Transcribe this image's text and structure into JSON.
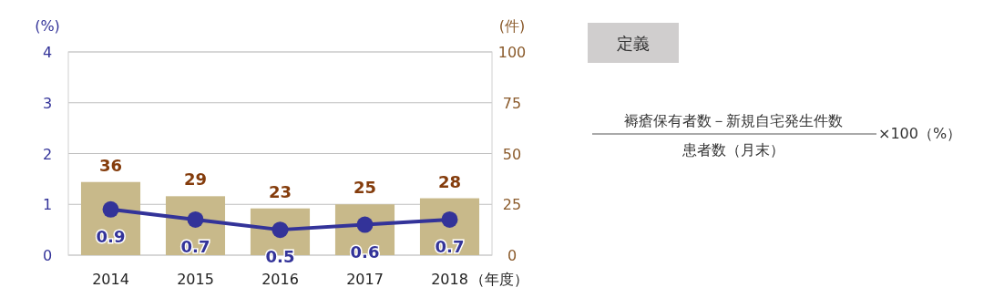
{
  "chart_data": {
    "type": "bar",
    "categories": [
      "2014",
      "2015",
      "2016",
      "2017",
      "2018"
    ],
    "series": [
      {
        "type": "bar",
        "axis": "y2",
        "color": "#c8b98a",
        "values": [
          36,
          29,
          23,
          25,
          28
        ]
      },
      {
        "type": "line",
        "axis": "y",
        "color": "#333399",
        "values": [
          0.9,
          0.7,
          0.5,
          0.6,
          0.7
        ]
      }
    ],
    "ylabel": "(%)",
    "y2label": "(件)",
    "xlabel": "（年度）",
    "ylim": [
      0,
      4
    ],
    "yticks": [
      0,
      1,
      2,
      3,
      4
    ],
    "y2lim": [
      0,
      100
    ],
    "y2ticks": [
      0,
      25,
      50,
      75,
      100
    ],
    "grid": "y",
    "marker": "circle",
    "line_style": "solid",
    "data_labels": true,
    "annotations": [
      "定義",
      "褥瘡保有者数－新規自宅発生件数",
      "患者数（月末）",
      "×100（%）"
    ]
  }
}
